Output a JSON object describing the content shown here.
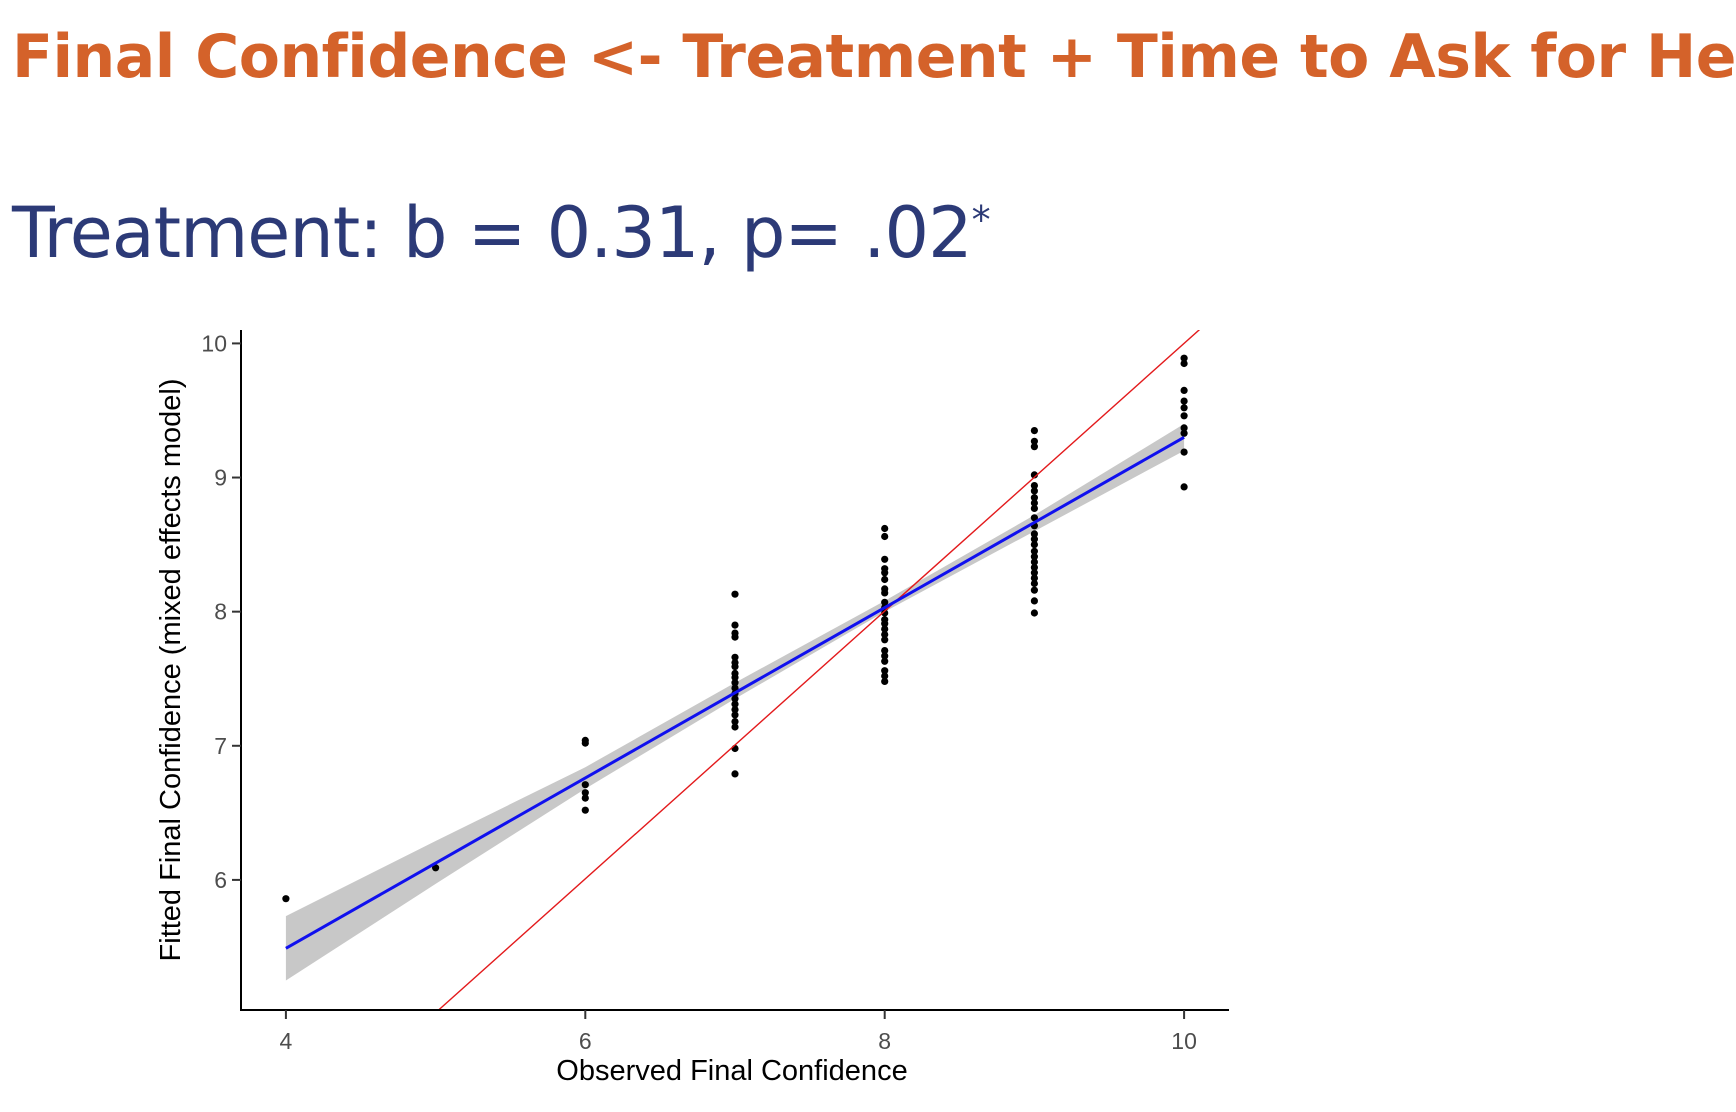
{
  "slide": {
    "title": "Final Confidence <- Treatment + Time to Ask for Help",
    "subtitle_main": "Treatment: b = 0.31, p= .02",
    "subtitle_sup": "*"
  },
  "colors": {
    "title": "#d4622a",
    "subtitle": "#2c3a77",
    "fit_line": "#1010ee",
    "identity_line": "#e31a1c",
    "ci_band": "#c8c8c8",
    "points": "#000000"
  },
  "chart_data": {
    "type": "scatter",
    "xlabel": "Observed Final Confidence",
    "ylabel": "Fitted Final Confidence (mixed effects model)",
    "xlim": [
      3.7,
      10.3
    ],
    "ylim": [
      5.03,
      10.1
    ],
    "xticks": [
      4,
      6,
      8,
      10
    ],
    "yticks": [
      6,
      7,
      8,
      9,
      10
    ],
    "points": [
      [
        4,
        5.86
      ],
      [
        5,
        6.09
      ],
      [
        6,
        7.04
      ],
      [
        6,
        7.02
      ],
      [
        6,
        6.71
      ],
      [
        6,
        6.65
      ],
      [
        6,
        6.61
      ],
      [
        6,
        6.52
      ],
      [
        7,
        8.13
      ],
      [
        7,
        7.9
      ],
      [
        7,
        7.84
      ],
      [
        7,
        7.81
      ],
      [
        7,
        7.66
      ],
      [
        7,
        7.62
      ],
      [
        7,
        7.59
      ],
      [
        7,
        7.54
      ],
      [
        7,
        7.51
      ],
      [
        7,
        7.47
      ],
      [
        7,
        7.43
      ],
      [
        7,
        7.39
      ],
      [
        7,
        7.35
      ],
      [
        7,
        7.31
      ],
      [
        7,
        7.27
      ],
      [
        7,
        7.23
      ],
      [
        7,
        7.18
      ],
      [
        7,
        7.14
      ],
      [
        7,
        6.98
      ],
      [
        7,
        6.79
      ],
      [
        8,
        8.62
      ],
      [
        8,
        8.56
      ],
      [
        8,
        8.39
      ],
      [
        8,
        8.32
      ],
      [
        8,
        8.29
      ],
      [
        8,
        8.24
      ],
      [
        8,
        8.17
      ],
      [
        8,
        8.14
      ],
      [
        8,
        8.07
      ],
      [
        8,
        8.03
      ],
      [
        8,
        7.99
      ],
      [
        8,
        7.94
      ],
      [
        8,
        7.91
      ],
      [
        8,
        7.87
      ],
      [
        8,
        7.83
      ],
      [
        8,
        7.79
      ],
      [
        8,
        7.71
      ],
      [
        8,
        7.67
      ],
      [
        8,
        7.63
      ],
      [
        8,
        7.56
      ],
      [
        8,
        7.52
      ],
      [
        8,
        7.48
      ],
      [
        9,
        9.35
      ],
      [
        9,
        9.27
      ],
      [
        9,
        9.23
      ],
      [
        9,
        9.02
      ],
      [
        9,
        8.94
      ],
      [
        9,
        8.9
      ],
      [
        9,
        8.85
      ],
      [
        9,
        8.81
      ],
      [
        9,
        8.77
      ],
      [
        9,
        8.7
      ],
      [
        9,
        8.64
      ],
      [
        9,
        8.58
      ],
      [
        9,
        8.54
      ],
      [
        9,
        8.5
      ],
      [
        9,
        8.45
      ],
      [
        9,
        8.41
      ],
      [
        9,
        8.37
      ],
      [
        9,
        8.33
      ],
      [
        9,
        8.29
      ],
      [
        9,
        8.25
      ],
      [
        9,
        8.21
      ],
      [
        9,
        8.16
      ],
      [
        9,
        8.08
      ],
      [
        9,
        7.99
      ],
      [
        10,
        9.89
      ],
      [
        10,
        9.85
      ],
      [
        10,
        9.65
      ],
      [
        10,
        9.57
      ],
      [
        10,
        9.52
      ],
      [
        10,
        9.46
      ],
      [
        10,
        9.37
      ],
      [
        10,
        9.33
      ],
      [
        10,
        9.19
      ],
      [
        10,
        8.93
      ]
    ],
    "fit_line": {
      "x": [
        4,
        10
      ],
      "y": [
        5.49,
        9.3
      ]
    },
    "ci_band": {
      "x": [
        4,
        5,
        6,
        7,
        8,
        9,
        10
      ],
      "lower": [
        5.25,
        5.97,
        6.68,
        7.35,
        8.0,
        8.6,
        9.2
      ],
      "upper": [
        5.73,
        6.29,
        6.84,
        7.47,
        8.08,
        8.72,
        9.4
      ]
    },
    "identity_line": {
      "x": [
        5.02,
        10.13
      ],
      "y": [
        5.03,
        10.13
      ]
    }
  }
}
